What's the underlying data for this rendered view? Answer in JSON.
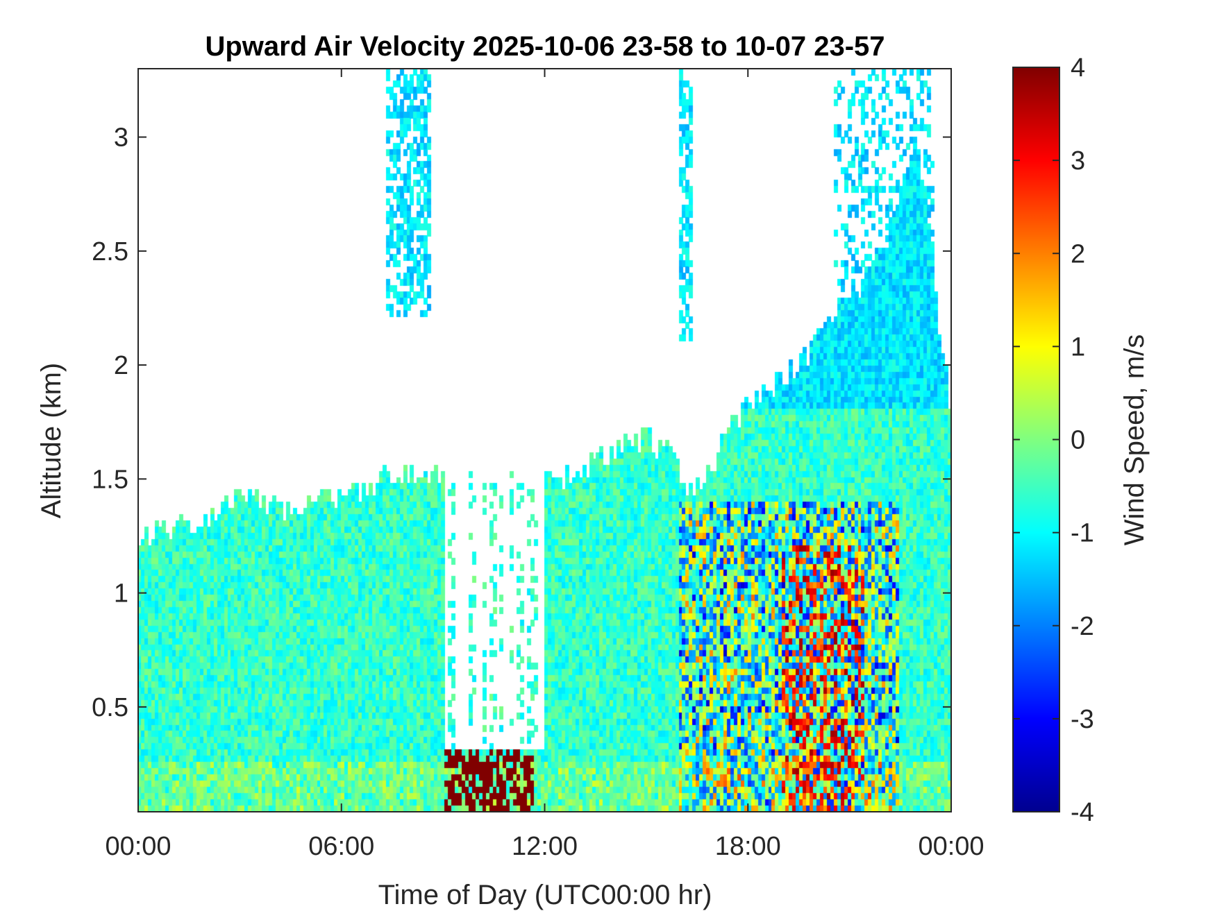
{
  "chart_data": {
    "type": "heatmap",
    "title": "Upward Air Velocity 2025-10-06 23-58 to 10-07 23-57",
    "xlabel": "Time of Day (UTC00:00 hr)",
    "ylabel": "Altitude (km)",
    "x_ticks": [
      "00:00",
      "06:00",
      "12:00",
      "18:00",
      "00:00"
    ],
    "x_tick_hours": [
      0,
      6,
      12,
      18,
      24
    ],
    "xlim_hours": [
      0,
      24
    ],
    "y_ticks": [
      "0.5",
      "1",
      "1.5",
      "2",
      "2.5",
      "3"
    ],
    "y_tick_values": [
      0.5,
      1,
      1.5,
      2,
      2.5,
      3
    ],
    "ylim_km": [
      0.04,
      3.3
    ],
    "colorbar": {
      "label": "Wind Speed, m/s",
      "ticks": [
        "-4",
        "-3",
        "-2",
        "-1",
        "0",
        "1",
        "2",
        "3",
        "4"
      ],
      "tick_values": [
        -4,
        -3,
        -2,
        -1,
        0,
        1,
        2,
        3,
        4
      ],
      "range": [
        -4,
        4
      ],
      "colormap": "jet"
    },
    "grid": false,
    "data_top_km_by_hour": [
      {
        "hour": 0,
        "top_km": 1.25
      },
      {
        "hour": 1.5,
        "top_km": 1.3
      },
      {
        "hour": 3,
        "top_km": 1.43
      },
      {
        "hour": 4.5,
        "top_km": 1.37
      },
      {
        "hour": 6,
        "top_km": 1.4
      },
      {
        "hour": 7.5,
        "top_km": 1.53
      },
      {
        "hour": 8.8,
        "top_km": 1.52
      },
      {
        "hour": 12.5,
        "top_km": 1.5
      },
      {
        "hour": 15,
        "top_km": 1.7
      },
      {
        "hour": 16.5,
        "top_km": 1.45
      },
      {
        "hour": 18,
        "top_km": 1.85
      },
      {
        "hour": 19.5,
        "top_km": 2.0
      },
      {
        "hour": 22,
        "top_km": 2.5
      },
      {
        "hour": 23,
        "top_km": 3.0
      },
      {
        "hour": 24,
        "top_km": 1.75
      }
    ]
  }
}
